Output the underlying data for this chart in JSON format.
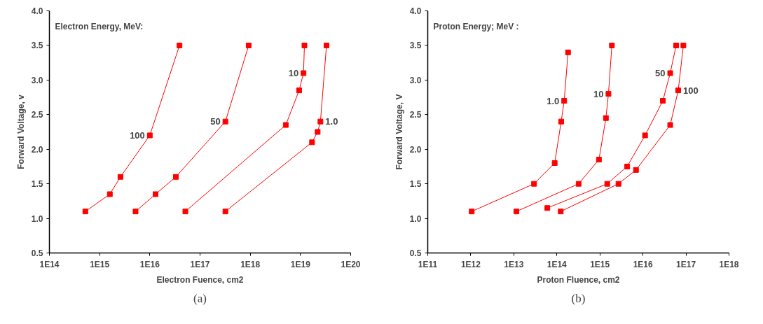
{
  "chart_data": [
    {
      "type": "line",
      "legend_title": "Electron Energy, MeV:",
      "xlabel": "Electron Fuence, cm2",
      "ylabel": "Forward Voltage, v",
      "annotations": [
        "(a)"
      ],
      "log": "x",
      "grid": false,
      "legend": false,
      "marker": "square",
      "line_style": "solid",
      "xlim": [
        100000000000000.0,
        1e+20
      ],
      "xticks": [
        {
          "value": 100000000000000.0,
          "label": "1E14"
        },
        {
          "value": 1000000000000000.0,
          "label": "1E15"
        },
        {
          "value": 1e+16,
          "label": "1E16"
        },
        {
          "value": 1e+17,
          "label": "1E17"
        },
        {
          "value": 1e+18,
          "label": "1E18"
        },
        {
          "value": 1e+19,
          "label": "1E19"
        },
        {
          "value": 1e+20,
          "label": "1E20"
        }
      ],
      "ylim": [
        0.5,
        4.0
      ],
      "yticks": [
        {
          "value": 0.5,
          "label": "0.5"
        },
        {
          "value": 1.0,
          "label": "1.0"
        },
        {
          "value": 1.5,
          "label": "1.5"
        },
        {
          "value": 2.0,
          "label": "2.0"
        },
        {
          "value": 2.5,
          "label": "2.5"
        },
        {
          "value": 3.0,
          "label": "3.0"
        },
        {
          "value": 3.5,
          "label": "3.5"
        },
        {
          "value": 4.0,
          "label": "4.0"
        }
      ],
      "series": [
        {
          "name": "100",
          "color": "#ff0000",
          "x": [
            520000000000000.0,
            1600000000000000.0,
            2600000000000000.0,
            1e+16,
            3.9e+16
          ],
          "values": [
            1.1,
            1.35,
            1.6,
            2.2,
            3.5
          ]
        },
        {
          "name": "50",
          "color": "#ff0000",
          "x": [
            5200000000000000.0,
            1.3e+16,
            3.3e+16,
            3.2e+17,
            9.3e+17
          ],
          "values": [
            1.1,
            1.35,
            1.6,
            2.4,
            3.5
          ]
        },
        {
          "name": "10",
          "color": "#ff0000",
          "x": [
            5.1e+16,
            5.1e+18,
            9.4e+18,
            1.15e+19,
            1.2e+19
          ],
          "values": [
            1.1,
            2.35,
            2.85,
            3.1,
            3.5
          ]
        },
        {
          "name": "1.0",
          "color": "#ff0000",
          "x": [
            3.2e+17,
            1.7e+19,
            2.2e+19,
            2.5e+19,
            3.3e+19
          ],
          "values": [
            1.1,
            2.1,
            2.25,
            2.4,
            3.5
          ]
        }
      ]
    },
    {
      "type": "line",
      "legend_title": "Proton Energy; MeV :",
      "xlabel": "Proton Fluence, cm2",
      "ylabel": "Forward Voltage, V",
      "annotations": [
        "(b)"
      ],
      "log": "x",
      "grid": false,
      "legend": false,
      "marker": "square",
      "line_style": "solid",
      "xlim": [
        100000000000.0,
        1e+18
      ],
      "xticks": [
        {
          "value": 100000000000.0,
          "label": "1E11"
        },
        {
          "value": 1000000000000.0,
          "label": "1E12"
        },
        {
          "value": 10000000000000.0,
          "label": "1E13"
        },
        {
          "value": 100000000000000.0,
          "label": "1E14"
        },
        {
          "value": 1000000000000000.0,
          "label": "1E15"
        },
        {
          "value": 1e+16,
          "label": "1E16"
        },
        {
          "value": 1e+17,
          "label": "1E17"
        },
        {
          "value": 1e+18,
          "label": "1E18"
        }
      ],
      "ylim": [
        0.5,
        4.0
      ],
      "yticks": [
        {
          "value": 0.5,
          "label": "0.5"
        },
        {
          "value": 1.0,
          "label": "1.0"
        },
        {
          "value": 1.5,
          "label": "1.5"
        },
        {
          "value": 2.0,
          "label": "2.0"
        },
        {
          "value": 2.5,
          "label": "2.5"
        },
        {
          "value": 3.0,
          "label": "3.0"
        },
        {
          "value": 3.5,
          "label": "3.5"
        },
        {
          "value": 4.0,
          "label": "4.0"
        }
      ],
      "series": [
        {
          "name": "1.0",
          "color": "#ff0000",
          "x": [
            1050000000000.0,
            29500000000000.0,
            89000000000000.0,
            126000000000000.0,
            148000000000000.0,
            182000000000000.0
          ],
          "values": [
            1.1,
            1.5,
            1.8,
            2.4,
            2.7,
            3.4
          ]
        },
        {
          "name": "10",
          "color": "#ff0000",
          "x": [
            11500000000000.0,
            320000000000000.0,
            950000000000000.0,
            1380000000000000.0,
            1580000000000000.0,
            1900000000000000.0
          ],
          "values": [
            1.1,
            1.5,
            1.85,
            2.45,
            2.8,
            3.5
          ]
        },
        {
          "name": "50",
          "color": "#ff0000",
          "x": [
            60000000000000.0,
            1480000000000000.0,
            4300000000000000.0,
            1.12e+16,
            2.9e+16,
            4.3e+16,
            5.9e+16
          ],
          "values": [
            1.15,
            1.5,
            1.75,
            2.2,
            2.7,
            3.1,
            3.5
          ]
        },
        {
          "name": "100",
          "color": "#ff0000",
          "x": [
            123000000000000.0,
            2700000000000000.0,
            6900000000000000.0,
            4.3e+16,
            6.6e+16,
            8.7e+16
          ],
          "values": [
            1.1,
            1.5,
            1.7,
            2.35,
            2.85,
            3.5
          ]
        }
      ]
    }
  ]
}
